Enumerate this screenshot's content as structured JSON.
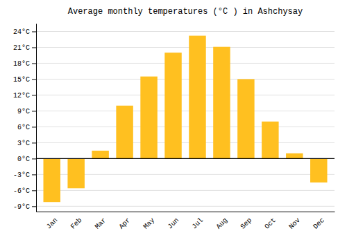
{
  "chart_data": {
    "type": "bar",
    "title": "Average monthly temperatures (°C ) in Ashchysay",
    "categories": [
      "Jan",
      "Feb",
      "Mar",
      "Apr",
      "May",
      "Jun",
      "Jul",
      "Aug",
      "Sep",
      "Oct",
      "Nov",
      "Dec"
    ],
    "values": [
      -8.2,
      -5.6,
      1.5,
      10.0,
      15.5,
      20.0,
      23.2,
      21.1,
      15.0,
      7.0,
      1.0,
      -4.5
    ],
    "color": "#FFC020",
    "ylim": [
      -10,
      25.5
    ],
    "yticks": [
      {
        "value": -9,
        "label": "-9°C"
      },
      {
        "value": -6,
        "label": "-6°C"
      },
      {
        "value": -3,
        "label": "-3°C"
      },
      {
        "value": 0,
        "label": "0°C"
      },
      {
        "value": 3,
        "label": "3°C"
      },
      {
        "value": 6,
        "label": "6°C"
      },
      {
        "value": 9,
        "label": "9°C"
      },
      {
        "value": 12,
        "label": "12°C"
      },
      {
        "value": 15,
        "label": "15°C"
      },
      {
        "value": 18,
        "label": "18°C"
      },
      {
        "value": 21,
        "label": "21°C"
      },
      {
        "value": 24,
        "label": "24°C"
      }
    ],
    "grid": true
  }
}
